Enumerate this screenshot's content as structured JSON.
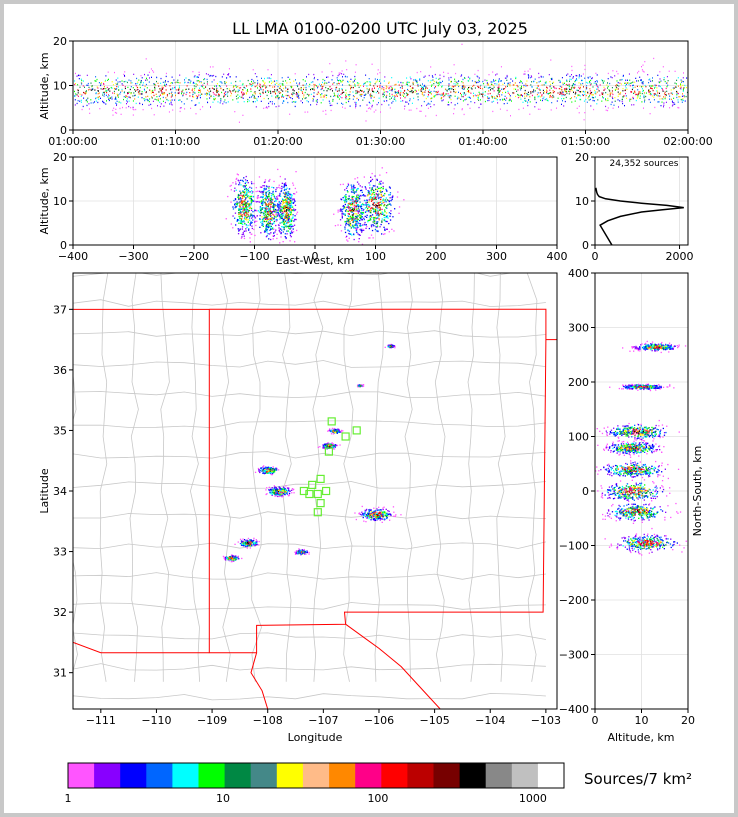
{
  "title": "LL LMA 0100-0200 UTC July 03, 2025",
  "chart_data": [
    {
      "id": "time-height",
      "type": "scatter",
      "ylabel": "Altitude, km",
      "xlabel": "",
      "xlim": [
        "01:00:00",
        "02:00:00"
      ],
      "xticks": [
        "01:00:00",
        "01:10:00",
        "01:20:00",
        "01:30:00",
        "01:40:00",
        "01:50:00",
        "02:00:00"
      ],
      "ylim": [
        0,
        20
      ],
      "yticks": [
        "0",
        "10",
        "20"
      ],
      "grid": true,
      "source_altitude_band_km": [
        5,
        13
      ]
    },
    {
      "id": "ew-height",
      "type": "scatter",
      "xlabel": "East-West, km",
      "ylabel": "Altitude, km",
      "xlim": [
        -400,
        400
      ],
      "xticks": [
        "−400",
        "−300",
        "−200",
        "−100",
        "0",
        "100",
        "200",
        "300",
        "400"
      ],
      "ylim": [
        0,
        20
      ],
      "yticks": [
        "0",
        "10",
        "20"
      ],
      "grid": true,
      "clusters": [
        {
          "x": -118,
          "y": 9,
          "spread_x": 9,
          "spread_y": 3
        },
        {
          "x": -78,
          "y": 8,
          "spread_x": 9,
          "spread_y": 3
        },
        {
          "x": -48,
          "y": 8,
          "spread_x": 7,
          "spread_y": 3
        },
        {
          "x": 62,
          "y": 8,
          "spread_x": 10,
          "spread_y": 3
        },
        {
          "x": 100,
          "y": 9,
          "spread_x": 14,
          "spread_y": 3
        }
      ]
    },
    {
      "id": "altitude-histogram",
      "type": "line",
      "annotation": "24,352 sources",
      "xlim": [
        0,
        2200
      ],
      "xticks": [
        "0",
        "2000"
      ],
      "ylim": [
        0,
        20
      ],
      "yticks": [
        "0",
        "10",
        "20"
      ],
      "points": [
        [
          400,
          0
        ],
        [
          120,
          4.5
        ],
        [
          300,
          5.5
        ],
        [
          600,
          6.5
        ],
        [
          1100,
          7.5
        ],
        [
          1600,
          8
        ],
        [
          2100,
          8.5
        ],
        [
          1700,
          9
        ],
        [
          1100,
          9.5
        ],
        [
          600,
          10
        ],
        [
          250,
          10.5
        ],
        [
          100,
          11
        ],
        [
          60,
          11.5
        ],
        [
          40,
          12
        ],
        [
          20,
          13
        ]
      ]
    },
    {
      "id": "plan-view",
      "type": "scatter",
      "xlabel": "Longitude",
      "ylabel": "Latitude",
      "xlim": [
        -111.5,
        -102.8
      ],
      "ylim": [
        30.4,
        37.6
      ],
      "xticks": [
        "−111",
        "−110",
        "−109",
        "−108",
        "−107",
        "−106",
        "−105",
        "−104",
        "−103"
      ],
      "yticks": [
        "31",
        "32",
        "33",
        "34",
        "35",
        "36",
        "37"
      ],
      "clusters": [
        {
          "lon": -108.0,
          "lat": 34.35,
          "spread": 0.08
        },
        {
          "lon": -107.8,
          "lat": 34.0,
          "spread": 0.1
        },
        {
          "lon": -108.35,
          "lat": 33.15,
          "spread": 0.08
        },
        {
          "lon": -106.9,
          "lat": 34.75,
          "spread": 0.06
        },
        {
          "lon": -106.8,
          "lat": 35.0,
          "spread": 0.05
        },
        {
          "lon": -106.05,
          "lat": 33.62,
          "spread": 0.13
        },
        {
          "lon": -106.35,
          "lat": 35.75,
          "spread": 0.02
        },
        {
          "lon": -105.8,
          "lat": 36.4,
          "spread": 0.03
        },
        {
          "lon": -108.65,
          "lat": 32.9,
          "spread": 0.06
        },
        {
          "lon": -107.4,
          "lat": 33.0,
          "spread": 0.05
        }
      ],
      "stations": [
        [
          -106.85,
          35.15
        ],
        [
          -106.6,
          34.9
        ],
        [
          -106.9,
          34.65
        ],
        [
          -106.4,
          35.0
        ],
        [
          -107.05,
          34.2
        ],
        [
          -107.2,
          34.1
        ],
        [
          -107.35,
          34.0
        ],
        [
          -107.25,
          33.95
        ],
        [
          -106.95,
          34.0
        ],
        [
          -107.1,
          33.95
        ],
        [
          -107.05,
          33.8
        ],
        [
          -107.1,
          33.65
        ]
      ]
    },
    {
      "id": "height-ns",
      "type": "scatter",
      "xlabel": "Altitude, km",
      "ylabel": "North-South, km",
      "xlim": [
        0,
        20
      ],
      "xticks": [
        "0",
        "10",
        "20"
      ],
      "ylim": [
        -400,
        400
      ],
      "yticks": [
        "−400",
        "−300",
        "−200",
        "−100",
        "0",
        "100",
        "200",
        "300",
        "400"
      ],
      "grid": true,
      "clusters": [
        {
          "y": 110,
          "x": 9,
          "spread_y": 6,
          "spread_x": 3
        },
        {
          "y": 80,
          "x": 8,
          "spread_y": 5,
          "spread_x": 2.5
        },
        {
          "y": 40,
          "x": 8,
          "spread_y": 6,
          "spread_x": 3
        },
        {
          "y": 0,
          "x": 8,
          "spread_y": 8,
          "spread_x": 3
        },
        {
          "y": -38,
          "x": 9,
          "spread_y": 7,
          "spread_x": 3
        },
        {
          "y": -95,
          "x": 11,
          "spread_y": 7,
          "spread_x": 3
        },
        {
          "y": 192,
          "x": 10,
          "spread_y": 2,
          "spread_x": 2
        },
        {
          "y": 265,
          "x": 13,
          "spread_y": 3,
          "spread_x": 2
        }
      ]
    }
  ],
  "colorbar": {
    "label": "Sources/7 km²",
    "tick_labels": [
      "1",
      "10",
      "100",
      "1000"
    ],
    "colors": [
      "#ff55ff",
      "#8800ff",
      "#0000ff",
      "#0066ff",
      "#00ffff",
      "#00ff00",
      "#008844",
      "#448888",
      "#ffff00",
      "#ffbb88",
      "#ff8800",
      "#ff0088",
      "#ff0000",
      "#bb0000",
      "#770000",
      "#000000",
      "#888888",
      "#c0c0c0",
      "#ffffff"
    ]
  },
  "density_colors": [
    "#ff55ff",
    "#8800ff",
    "#0000ff",
    "#0066ff",
    "#00ffff",
    "#00ff00",
    "#008844",
    "#ffff00",
    "#ff8800",
    "#ff0088",
    "#ff0000",
    "#bb0000",
    "#000000"
  ]
}
